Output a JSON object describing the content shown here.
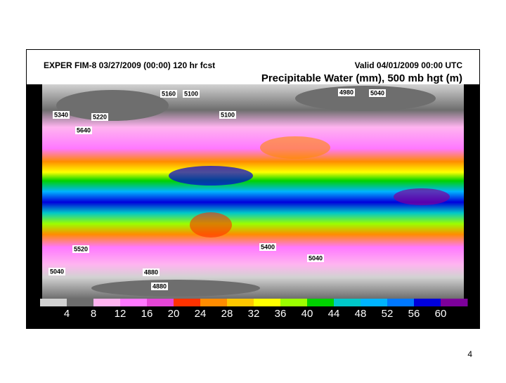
{
  "header": {
    "left": "EXPER FIM-8 03/27/2009 (00:00) 120 hr fcst",
    "right": "Valid 04/01/2009 00:00 UTC",
    "title": "Precipitable Water (mm), 500 mb hgt (m)"
  },
  "map": {
    "contour_labels": [
      "5160",
      "5100",
      "4980",
      "5040",
      "5340",
      "5220",
      "5100",
      "5640",
      "5520",
      "5400",
      "5040",
      "5040",
      "4880",
      "4880"
    ]
  },
  "colorbar": {
    "colors": [
      "#d2d2d2",
      "#6e6e6e",
      "#ffb4f0",
      "#ff78ff",
      "#e646d7",
      "#ff3200",
      "#ff8c00",
      "#ffc800",
      "#ffff00",
      "#9bff00",
      "#00d200",
      "#00c8c8",
      "#00b4ff",
      "#0078ff",
      "#0000dc",
      "#7d009b"
    ],
    "ticks": [
      4,
      8,
      12,
      16,
      20,
      24,
      28,
      32,
      36,
      40,
      44,
      48,
      52,
      56,
      60
    ]
  },
  "page_number": "4"
}
